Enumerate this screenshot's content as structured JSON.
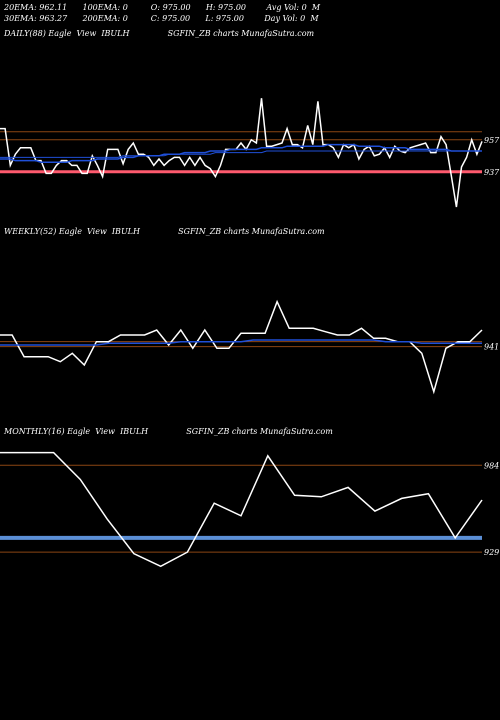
{
  "header": {
    "line1": "20EMA: 962.11      100EMA: 0         O: 975.00      H: 975.00        Avg Vol: 0  M",
    "line2": "30EMA: 963.27      200EMA: 0         C: 975.00      L: 975.00        Day Vol: 0  M"
  },
  "colors": {
    "background": "#000000",
    "price": "#ffffff",
    "ema": "#1f4fd8",
    "support": "#ff5a6e",
    "ref": "#8b4513",
    "monthly_band": "#5b8fd6"
  },
  "chart_data": [
    {
      "type": "line",
      "panel": "daily",
      "title": "DAILY(88) Eagle  View  IBULH               SGFIN_ZB charts MunafaSutra.com",
      "yticks": [
        957,
        937
      ],
      "ylim": [
        910,
        985
      ],
      "series": [
        {
          "role": "price",
          "values": [
            964,
            964,
            941,
            948,
            952,
            952,
            952,
            944,
            944,
            936,
            936,
            941,
            944,
            944,
            941,
            941,
            936,
            936,
            947,
            941,
            934,
            951,
            951,
            951,
            942,
            951,
            955,
            948,
            948,
            946,
            941,
            945,
            941,
            944,
            946,
            946,
            941,
            946,
            941,
            946,
            941,
            939,
            934,
            941,
            951,
            951,
            951,
            955,
            951,
            957,
            955,
            983,
            953,
            953,
            954,
            955,
            964,
            954,
            954,
            952,
            966,
            954,
            981,
            954,
            954,
            952,
            946,
            954,
            952,
            954,
            945,
            951,
            953,
            947,
            948,
            952,
            946,
            953,
            950,
            949,
            952,
            953,
            954,
            955,
            949,
            949,
            959,
            954,
            935,
            915,
            940,
            946,
            957,
            948,
            956
          ]
        },
        {
          "role": "ema",
          "values": [
            945,
            945,
            945,
            944,
            944,
            944,
            944,
            944,
            943,
            943,
            943,
            943,
            943,
            943,
            944,
            944,
            944,
            944,
            944,
            945,
            945,
            945,
            945,
            945,
            946,
            946,
            946,
            947,
            947,
            947,
            947,
            947,
            948,
            948,
            948,
            948,
            949,
            949,
            949,
            949,
            949,
            950,
            950,
            950,
            950,
            951,
            951,
            951,
            951,
            951,
            951,
            952,
            952,
            952,
            952,
            952,
            953,
            953,
            953,
            953,
            953,
            953,
            953,
            953,
            954,
            954,
            954,
            954,
            954,
            954,
            953,
            953,
            953,
            953,
            953,
            952,
            952,
            952,
            952,
            952,
            951,
            951,
            951,
            951,
            951,
            951,
            951,
            951,
            950,
            950,
            950,
            950,
            950,
            950,
            950
          ]
        },
        {
          "role": "ema2",
          "values": [
            946,
            946,
            946,
            946,
            946,
            946,
            946,
            946,
            946,
            946,
            946,
            946,
            946,
            946,
            946,
            946,
            946,
            946,
            946,
            946,
            946,
            946,
            946,
            946,
            947,
            947,
            947,
            947,
            947,
            947,
            947,
            947,
            947,
            948,
            948,
            948,
            948,
            948,
            948,
            948,
            948,
            948,
            949,
            949,
            949,
            949,
            949,
            949,
            949,
            949,
            949,
            949,
            950,
            950,
            950,
            950,
            950,
            950,
            950,
            950,
            950,
            950,
            950,
            950,
            950,
            950,
            950,
            950,
            950,
            950,
            950,
            950,
            950,
            950,
            950,
            950,
            950,
            950,
            950,
            950,
            950,
            950,
            950,
            950,
            950,
            950,
            950,
            950,
            950,
            950,
            950,
            950,
            950,
            950,
            950
          ]
        }
      ],
      "support": 937,
      "refs": [
        957,
        962
      ]
    },
    {
      "type": "line",
      "panel": "weekly",
      "title": "WEEKLY(52) Eagle  View  IBULH               SGFIN_ZB charts MunafaSutra.com",
      "yticks": [
        941
      ],
      "ylim": [
        900,
        975
      ],
      "series": [
        {
          "role": "price",
          "values": [
            948,
            948,
            935,
            935,
            935,
            932,
            937,
            930,
            944,
            944,
            948,
            948,
            948,
            951,
            942,
            951,
            940,
            951,
            940,
            940,
            949,
            949,
            949,
            968,
            952,
            952,
            952,
            950,
            948,
            948,
            952,
            946,
            946,
            944,
            944,
            937,
            914,
            940,
            944,
            944,
            951
          ]
        },
        {
          "role": "ema",
          "values": [
            942,
            942,
            942,
            942,
            942,
            942,
            942,
            942,
            942,
            943,
            943,
            943,
            943,
            943,
            943,
            944,
            944,
            944,
            944,
            944,
            944,
            945,
            945,
            945,
            945,
            945,
            945,
            945,
            945,
            945,
            945,
            945,
            944,
            944,
            944,
            943,
            943,
            943,
            943,
            943,
            943
          ]
        }
      ],
      "refs": [
        941,
        944
      ]
    },
    {
      "type": "line",
      "panel": "monthly",
      "title": "MONTHLY(16) Eagle  View  IBULH               SGFIN_ZB charts MunafaSutra.com",
      "yticks": [
        984,
        929
      ],
      "ylim": [
        905,
        1000
      ],
      "series": [
        {
          "role": "price",
          "values": [
            992,
            992,
            992,
            975,
            950,
            928,
            920,
            929,
            960,
            952,
            990,
            965,
            964,
            970,
            955,
            963,
            966,
            938,
            962
          ]
        }
      ],
      "band": 938,
      "refs": [
        984,
        929
      ]
    }
  ]
}
